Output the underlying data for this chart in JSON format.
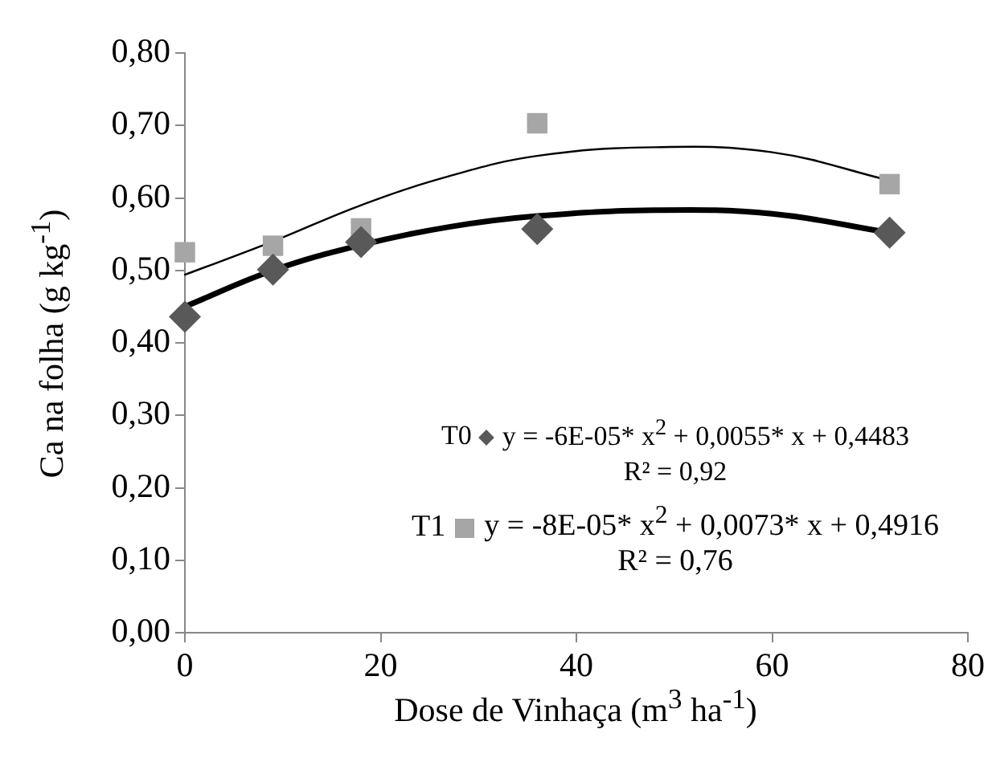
{
  "chart_data": {
    "type": "scatter",
    "xlabel": "Dose de Vinhaça (m$^{3}$ ha$^{-1}$)",
    "ylabel": "Ca na folha (g kg$^{-1}$)",
    "xlim": [
      0,
      80
    ],
    "xticks": [
      0,
      20,
      40,
      60,
      80
    ],
    "ylim": [
      0,
      0.8
    ],
    "yticks": [
      {
        "value": 0,
        "label": "0,00"
      },
      {
        "value": 0.1,
        "label": "0,10"
      },
      {
        "value": 0.2,
        "label": "0,20"
      },
      {
        "value": 0.3,
        "label": "0,30"
      },
      {
        "value": 0.4,
        "label": "0,40"
      },
      {
        "value": 0.5,
        "label": "0,50"
      },
      {
        "value": 0.6,
        "label": "0,60"
      },
      {
        "value": 0.7,
        "label": "0,70"
      },
      {
        "value": 0.8,
        "label": "0,80"
      }
    ],
    "grid": false,
    "legend": "bottom",
    "series": [
      {
        "name": "T0",
        "type": "scatter",
        "marker": "diamond",
        "color": "#595959",
        "x": [
          0,
          9,
          18,
          36,
          72
        ],
        "values": [
          0.436,
          0.501,
          0.539,
          0.557,
          0.552
        ]
      },
      {
        "name": "T1",
        "type": "scatter",
        "marker": "square",
        "color": "#a6a6a6",
        "x": [
          0,
          9,
          18,
          36,
          72
        ],
        "values": [
          0.525,
          0.534,
          0.558,
          0.703,
          0.619
        ]
      },
      {
        "type": "line",
        "marker": "none",
        "line_style": "solid",
        "color": "#000000",
        "x": [
          0,
          9,
          18,
          27,
          36,
          48,
          60,
          72
        ],
        "values": [
          0.45,
          0.5,
          0.535,
          0.56,
          0.575,
          0.583,
          0.578,
          0.552
        ]
      },
      {
        "type": "line",
        "marker": "none",
        "line_style": "solid",
        "color": "#000000",
        "x": [
          0,
          9,
          18,
          27,
          36,
          48,
          60,
          72
        ],
        "values": [
          0.494,
          0.54,
          0.59,
          0.63,
          0.658,
          0.67,
          0.663,
          0.624
        ]
      }
    ],
    "annotations": [
      "y = -6E-05* x$^{2}$ + 0,0055* x + 0,4483",
      "R² = 0,92",
      "y = -8E-05* x$^{2}$ + 0,0073* x + 0,4916",
      "R² = 0,76"
    ]
  }
}
